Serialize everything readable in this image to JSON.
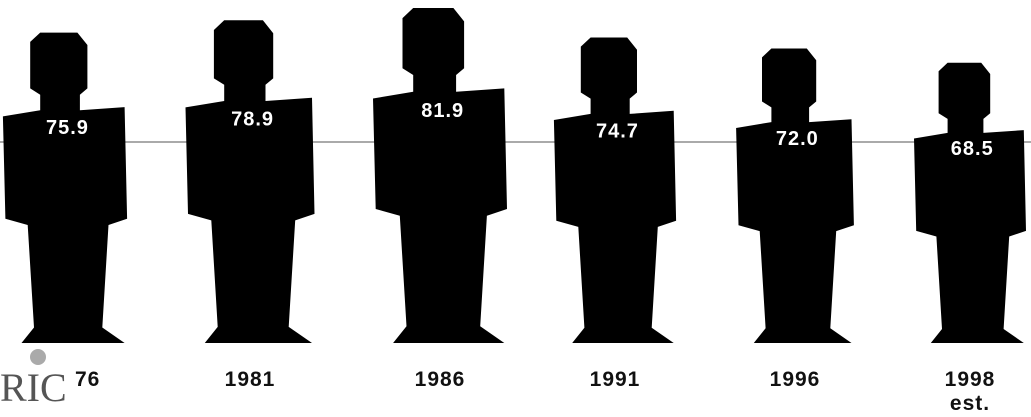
{
  "chart_data": {
    "type": "pictogram",
    "categories": [
      "76",
      "1981",
      "1986",
      "1991",
      "1996",
      "1998\nest."
    ],
    "values": [
      75.9,
      78.9,
      81.9,
      74.7,
      72.0,
      68.5
    ],
    "value_labels": [
      "75.9",
      "78.9",
      "81.9",
      "74.7",
      "72.0",
      "68.5"
    ],
    "color": "#000000"
  },
  "logo": "RIC"
}
